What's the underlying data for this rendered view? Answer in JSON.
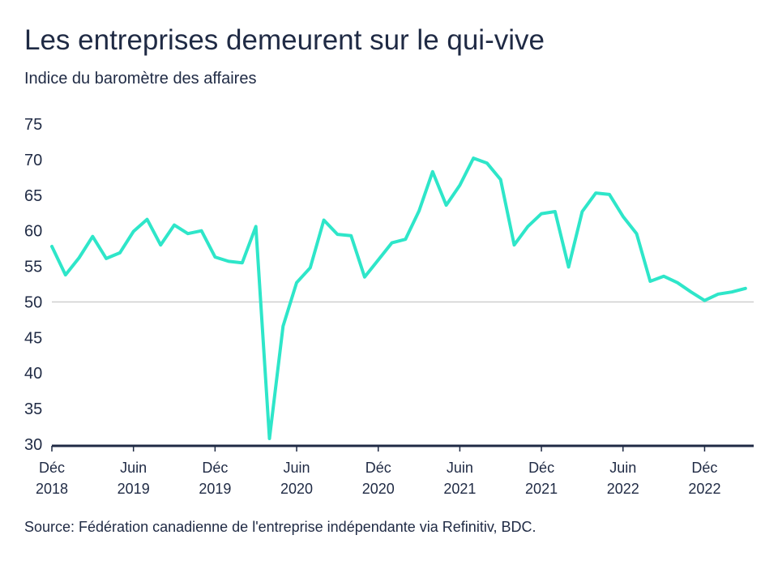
{
  "header": {
    "title": "Les entreprises demeurent sur le qui-vive",
    "subtitle": "Indice du baromètre des affaires"
  },
  "footer": {
    "source": "Source: Fédération canadienne de l'entreprise indépendante via Refinitiv, BDC."
  },
  "colors": {
    "line": "#2ee6c9",
    "axis": "#1f2a44",
    "reference_line": "#cfcfcf",
    "text": "#1f2a44"
  },
  "chart_data": {
    "type": "line",
    "title": "Les entreprises demeurent sur le qui-vive",
    "ylabel": "Indice du baromètre des affaires",
    "ylim": [
      30,
      75
    ],
    "yticks": [
      30,
      35,
      40,
      45,
      50,
      55,
      60,
      65,
      70,
      75
    ],
    "reference_y": 50,
    "grid": false,
    "xticks": [
      {
        "x": "2018-12",
        "month": "Déc",
        "year": "2018"
      },
      {
        "x": "2019-06",
        "month": "Juin",
        "year": "2019"
      },
      {
        "x": "2019-12",
        "month": "Déc",
        "year": "2019"
      },
      {
        "x": "2020-06",
        "month": "Juin",
        "year": "2020"
      },
      {
        "x": "2020-12",
        "month": "Déc",
        "year": "2020"
      },
      {
        "x": "2021-06",
        "month": "Juin",
        "year": "2021"
      },
      {
        "x": "2021-12",
        "month": "Déc",
        "year": "2021"
      },
      {
        "x": "2022-06",
        "month": "Juin",
        "year": "2022"
      },
      {
        "x": "2022-12",
        "month": "Déc",
        "year": "2022"
      }
    ],
    "x": [
      "2018-12",
      "2019-01",
      "2019-02",
      "2019-03",
      "2019-04",
      "2019-05",
      "2019-06",
      "2019-07",
      "2019-08",
      "2019-09",
      "2019-10",
      "2019-11",
      "2019-12",
      "2020-01",
      "2020-02",
      "2020-03",
      "2020-04",
      "2020-05",
      "2020-06",
      "2020-07",
      "2020-08",
      "2020-09",
      "2020-10",
      "2020-11",
      "2020-12",
      "2021-01",
      "2021-02",
      "2021-03",
      "2021-04",
      "2021-05",
      "2021-06",
      "2021-07",
      "2021-08",
      "2021-09",
      "2021-10",
      "2021-11",
      "2021-12",
      "2022-01",
      "2022-02",
      "2022-03",
      "2022-04",
      "2022-05",
      "2022-06",
      "2022-07",
      "2022-08",
      "2022-09",
      "2022-10",
      "2022-11",
      "2022-12",
      "2023-01",
      "2023-02",
      "2023-03"
    ],
    "values": [
      57.8,
      53.8,
      56.2,
      59.2,
      56.1,
      56.9,
      59.9,
      61.6,
      58.0,
      60.8,
      59.6,
      60.0,
      56.3,
      55.7,
      55.5,
      60.6,
      30.8,
      46.6,
      52.7,
      54.8,
      61.5,
      59.5,
      59.3,
      53.5,
      55.9,
      58.3,
      58.8,
      62.8,
      68.3,
      63.6,
      66.4,
      70.2,
      69.5,
      67.2,
      58.0,
      60.6,
      62.4,
      62.7,
      54.9,
      62.7,
      65.3,
      65.1,
      62.0,
      59.6,
      52.9,
      53.6,
      52.7,
      51.4,
      50.2,
      51.1,
      51.4,
      51.9
    ]
  }
}
